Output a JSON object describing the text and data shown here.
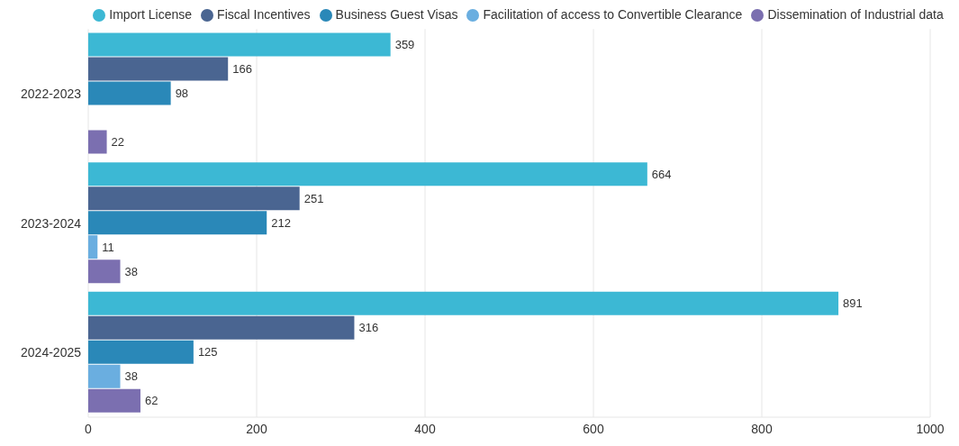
{
  "chart_data": {
    "type": "bar",
    "orientation": "horizontal",
    "categories": [
      "2022-2023",
      "2023-2024",
      "2024-2025"
    ],
    "series": [
      {
        "name": "Import License",
        "color": "#3cb8d4",
        "values": [
          359,
          664,
          891
        ]
      },
      {
        "name": "Fiscal Incentives",
        "color": "#4a6591",
        "values": [
          166,
          251,
          316
        ]
      },
      {
        "name": "Business Guest Visas",
        "color": "#2a88b8",
        "values": [
          98,
          212,
          125
        ]
      },
      {
        "name": "Facilitation of access to Convertible Clearance",
        "color": "#6aaee0",
        "values": [
          null,
          11,
          38
        ]
      },
      {
        "name": "Dissemination of Industrial data",
        "color": "#7b6fb0",
        "values": [
          22,
          38,
          62
        ]
      }
    ],
    "xlim": [
      0,
      1000
    ],
    "xticks": [
      0,
      200,
      400,
      600,
      800,
      1000
    ],
    "grid": "x",
    "legend": "top",
    "data_labels": true
  }
}
